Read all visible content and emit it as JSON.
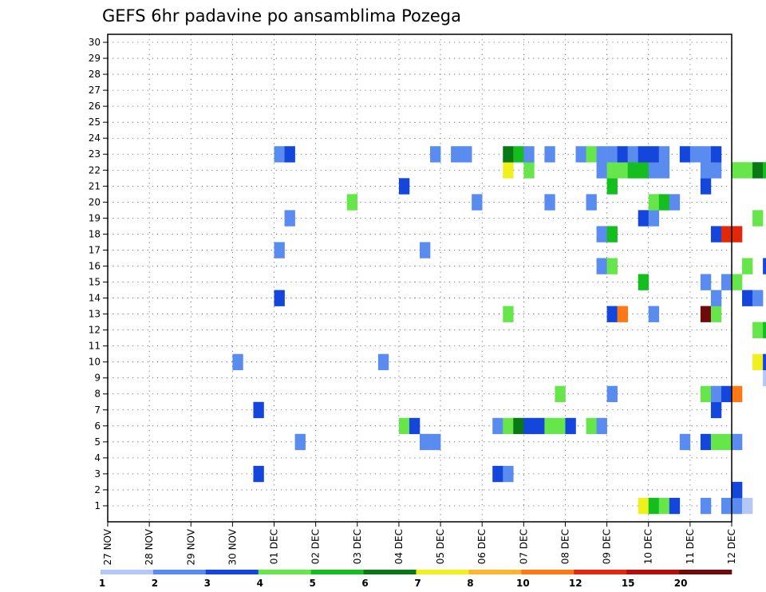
{
  "chart_data": {
    "type": "heatmap",
    "title": "GEFS 6hr padavine po ansamblima Pozega",
    "xlabel": "",
    "ylabel": "",
    "x_tick_labels": [
      "27 NOV",
      "28 NOV",
      "29 NOV",
      "30 NOV",
      "01 DEC",
      "02 DEC",
      "03 DEC",
      "04 DEC",
      "05 DEC",
      "06 DEC",
      "07 DEC",
      "08 DEC",
      "09 DEC",
      "10 DEC",
      "11 DEC",
      "12 DEC"
    ],
    "x_unit": "day index (0 = 27 NOV 00Z), 6-hourly steps",
    "xlim": [
      0,
      15
    ],
    "y_tick_labels": [
      "1",
      "2",
      "3",
      "4",
      "5",
      "6",
      "7",
      "8",
      "9",
      "10",
      "11",
      "12",
      "13",
      "14",
      "15",
      "16",
      "17",
      "18",
      "19",
      "20",
      "21",
      "22",
      "23",
      "24",
      "25",
      "26",
      "27",
      "28",
      "29",
      "30"
    ],
    "ylim": [
      0,
      30
    ],
    "grid": true,
    "colorbar": {
      "placement": "bottom",
      "levels": [
        "1",
        "2",
        "3",
        "4",
        "5",
        "6",
        "7",
        "8",
        "10",
        "12",
        "15",
        "20"
      ],
      "colors": [
        "#b4c8f5",
        "#5a8cf0",
        "#1446dc",
        "#66e64b",
        "#14be1e",
        "#0a7814",
        "#f0f01e",
        "#ffb432",
        "#ff7814",
        "#e1280a",
        "#b40f0a",
        "#6e0a0a"
      ]
    },
    "cells": [
      [
        1,
        12.75,
        6
      ],
      [
        1,
        13.0,
        4
      ],
      [
        1,
        13.25,
        3
      ],
      [
        1,
        13.5,
        2
      ],
      [
        1,
        14.25,
        1
      ],
      [
        1,
        14.75,
        1
      ],
      [
        1,
        15.0,
        1
      ],
      [
        1,
        15.25,
        0
      ],
      [
        2,
        15.0,
        2
      ],
      [
        3,
        3.5,
        2
      ],
      [
        3,
        9.25,
        2
      ],
      [
        3,
        9.5,
        1
      ],
      [
        5,
        4.5,
        1
      ],
      [
        5,
        7.5,
        1
      ],
      [
        5,
        7.75,
        1
      ],
      [
        5,
        13.75,
        1
      ],
      [
        5,
        14.25,
        2
      ],
      [
        5,
        14.5,
        3
      ],
      [
        5,
        14.75,
        3
      ],
      [
        5,
        15.0,
        1
      ],
      [
        6,
        7.0,
        3
      ],
      [
        6,
        7.25,
        2
      ],
      [
        6,
        9.25,
        1
      ],
      [
        6,
        9.5,
        3
      ],
      [
        6,
        9.75,
        5
      ],
      [
        6,
        10.0,
        2
      ],
      [
        6,
        10.25,
        2
      ],
      [
        6,
        10.5,
        3
      ],
      [
        6,
        10.75,
        3
      ],
      [
        6,
        11.0,
        2
      ],
      [
        6,
        11.5,
        3
      ],
      [
        6,
        11.75,
        1
      ],
      [
        7,
        3.5,
        2
      ],
      [
        7,
        14.5,
        2
      ],
      [
        8,
        10.75,
        3
      ],
      [
        8,
        12.0,
        1
      ],
      [
        8,
        14.25,
        3
      ],
      [
        8,
        14.5,
        1
      ],
      [
        8,
        14.75,
        2
      ],
      [
        8,
        15.0,
        8
      ],
      [
        9,
        15.75,
        0
      ],
      [
        10,
        3.0,
        1
      ],
      [
        10,
        6.5,
        1
      ],
      [
        10,
        15.5,
        6
      ],
      [
        10,
        15.75,
        2
      ],
      [
        12,
        15.5,
        3
      ],
      [
        12,
        15.75,
        4
      ],
      [
        13,
        9.5,
        3
      ],
      [
        13,
        12.0,
        2
      ],
      [
        13,
        12.25,
        8
      ],
      [
        13,
        13.0,
        1
      ],
      [
        13,
        14.25,
        11
      ],
      [
        13,
        14.5,
        3
      ],
      [
        14,
        4.0,
        2
      ],
      [
        14,
        14.5,
        1
      ],
      [
        14,
        15.25,
        2
      ],
      [
        14,
        15.5,
        1
      ],
      [
        15,
        12.75,
        4
      ],
      [
        15,
        14.25,
        1
      ],
      [
        15,
        14.75,
        1
      ],
      [
        15,
        15.0,
        3
      ],
      [
        16,
        11.75,
        1
      ],
      [
        16,
        12.0,
        3
      ],
      [
        16,
        15.25,
        3
      ],
      [
        16,
        15.75,
        2
      ],
      [
        17,
        4.0,
        1
      ],
      [
        17,
        7.5,
        1
      ],
      [
        18,
        11.75,
        1
      ],
      [
        18,
        12.0,
        4
      ],
      [
        18,
        14.5,
        2
      ],
      [
        18,
        14.75,
        9
      ],
      [
        18,
        15.0,
        9
      ],
      [
        19,
        4.25,
        1
      ],
      [
        19,
        12.75,
        2
      ],
      [
        19,
        13.0,
        1
      ],
      [
        19,
        15.5,
        3
      ],
      [
        20,
        5.75,
        3
      ],
      [
        20,
        8.75,
        1
      ],
      [
        20,
        10.5,
        1
      ],
      [
        20,
        11.5,
        1
      ],
      [
        20,
        13.0,
        3
      ],
      [
        20,
        13.25,
        4
      ],
      [
        20,
        13.5,
        1
      ],
      [
        21,
        7.0,
        2
      ],
      [
        21,
        12.0,
        4
      ],
      [
        21,
        14.25,
        2
      ],
      [
        22,
        9.5,
        6
      ],
      [
        22,
        10.0,
        3
      ],
      [
        22,
        11.75,
        1
      ],
      [
        22,
        12.0,
        3
      ],
      [
        22,
        12.25,
        3
      ],
      [
        22,
        12.5,
        4
      ],
      [
        22,
        12.75,
        4
      ],
      [
        22,
        13.0,
        1
      ],
      [
        22,
        13.25,
        1
      ],
      [
        22,
        14.25,
        1
      ],
      [
        22,
        14.5,
        1
      ],
      [
        22,
        15.0,
        3
      ],
      [
        22,
        15.25,
        3
      ],
      [
        22,
        15.5,
        5
      ],
      [
        22,
        15.75,
        4
      ],
      [
        23,
        4.0,
        1
      ],
      [
        23,
        4.25,
        2
      ],
      [
        23,
        7.75,
        1
      ],
      [
        23,
        8.25,
        1
      ],
      [
        23,
        8.5,
        1
      ],
      [
        23,
        9.5,
        5
      ],
      [
        23,
        9.75,
        4
      ],
      [
        23,
        10.0,
        1
      ],
      [
        23,
        10.5,
        1
      ],
      [
        23,
        11.25,
        1
      ],
      [
        23,
        11.5,
        3
      ],
      [
        23,
        11.75,
        1
      ],
      [
        23,
        12.0,
        1
      ],
      [
        23,
        12.25,
        2
      ],
      [
        23,
        12.5,
        1
      ],
      [
        23,
        12.75,
        2
      ],
      [
        23,
        13.0,
        2
      ],
      [
        23,
        13.25,
        1
      ],
      [
        23,
        13.75,
        2
      ],
      [
        23,
        14.0,
        1
      ],
      [
        23,
        14.25,
        1
      ],
      [
        23,
        14.5,
        2
      ]
    ]
  }
}
